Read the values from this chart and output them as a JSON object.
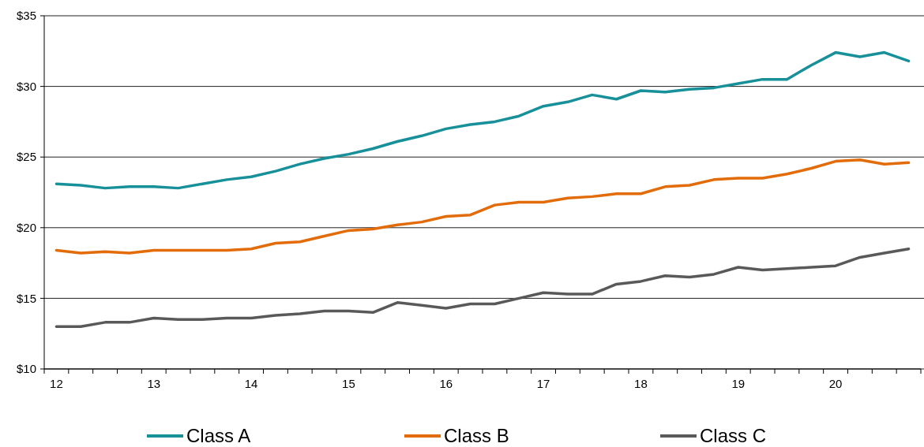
{
  "chart_data": {
    "type": "line",
    "categories": [
      "12",
      null,
      null,
      null,
      "13",
      null,
      null,
      null,
      "14",
      null,
      null,
      null,
      "15",
      null,
      null,
      null,
      "16",
      null,
      null,
      null,
      "17",
      null,
      null,
      null,
      "18",
      null,
      null,
      null,
      "19",
      null,
      null,
      null,
      "20",
      null,
      null,
      null
    ],
    "series": [
      {
        "name": "Class A",
        "color": "#17909a",
        "values": [
          23.1,
          23.0,
          22.8,
          22.9,
          22.9,
          22.8,
          23.1,
          23.4,
          23.6,
          24.0,
          24.5,
          24.9,
          25.2,
          25.6,
          26.1,
          26.5,
          27.0,
          27.3,
          27.5,
          27.9,
          28.6,
          28.9,
          29.4,
          29.1,
          29.7,
          29.6,
          29.8,
          29.9,
          30.2,
          30.5,
          30.5,
          31.5,
          32.4,
          32.1,
          32.4,
          31.8
        ]
      },
      {
        "name": "Class B",
        "color": "#e36c0a",
        "values": [
          18.4,
          18.2,
          18.3,
          18.2,
          18.4,
          18.4,
          18.4,
          18.4,
          18.5,
          18.9,
          19.0,
          19.4,
          19.8,
          19.9,
          20.2,
          20.4,
          20.8,
          20.9,
          21.6,
          21.8,
          21.8,
          22.1,
          22.2,
          22.4,
          22.4,
          22.9,
          23.0,
          23.4,
          23.5,
          23.5,
          23.8,
          24.2,
          24.7,
          24.8,
          24.5,
          24.6
        ]
      },
      {
        "name": "Class C",
        "color": "#595959",
        "values": [
          13.0,
          13.0,
          13.3,
          13.3,
          13.6,
          13.5,
          13.5,
          13.6,
          13.6,
          13.8,
          13.9,
          14.1,
          14.1,
          14.0,
          14.7,
          14.5,
          14.3,
          14.6,
          14.6,
          15.0,
          15.4,
          15.3,
          15.3,
          16.0,
          16.2,
          16.6,
          16.5,
          16.7,
          17.2,
          17.0,
          17.1,
          17.2,
          17.3,
          17.9,
          18.2,
          18.5
        ]
      }
    ],
    "ylim": [
      10,
      35
    ],
    "yticks": [
      {
        "value": 10,
        "label": "$10"
      },
      {
        "value": 15,
        "label": "$15"
      },
      {
        "value": 20,
        "label": "$20"
      },
      {
        "value": 25,
        "label": "$25"
      },
      {
        "value": 30,
        "label": "$30"
      },
      {
        "value": 35,
        "label": "$35"
      }
    ],
    "grid": "y",
    "legend": "bottom",
    "marker": "none",
    "line_style": "solid"
  }
}
